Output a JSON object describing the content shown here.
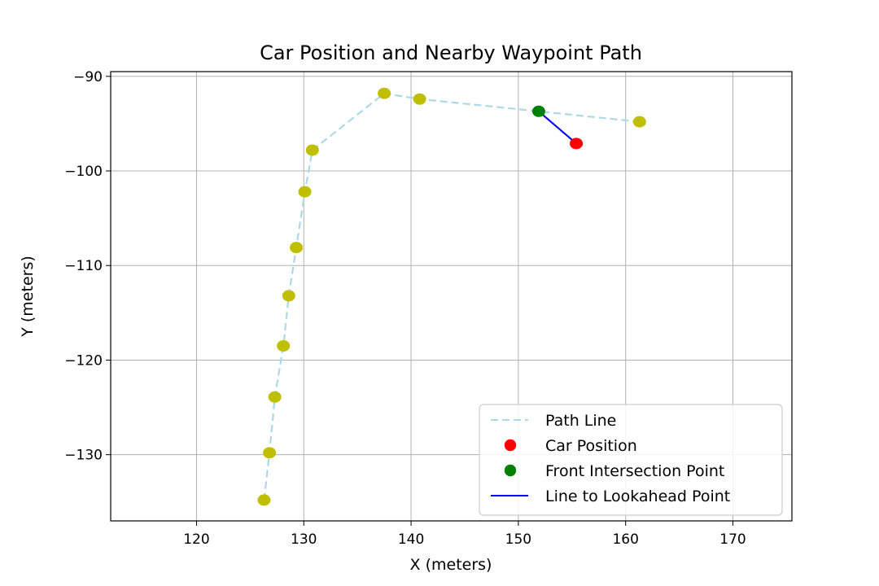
{
  "chart_data": {
    "type": "scatter",
    "title": "Car Position and Nearby Waypoint Path",
    "xlabel": "X (meters)",
    "ylabel": "Y (meters)",
    "xlim": [
      112,
      175.5
    ],
    "ylim": [
      -137,
      -89.5
    ],
    "x_ticks": [
      120,
      130,
      140,
      150,
      160,
      170
    ],
    "y_ticks": [
      -90,
      -100,
      -110,
      -120,
      -130
    ],
    "x_tick_labels": [
      "120",
      "130",
      "140",
      "150",
      "160",
      "170"
    ],
    "y_tick_labels": [
      "−90",
      "−100",
      "−110",
      "−120",
      "−130"
    ],
    "grid": true,
    "legend_position": "lower-right",
    "colors": {
      "path_line": "#add8e6",
      "waypoint": "#bfbf00",
      "car": "#ff0000",
      "intersection": "#008000",
      "lookahead_line": "#0000ff"
    },
    "waypoints": {
      "x": [
        126.3,
        126.8,
        127.3,
        128.1,
        128.6,
        129.3,
        130.1,
        130.8,
        137.5,
        140.8,
        161.3
      ],
      "y": [
        -134.8,
        -129.8,
        -123.9,
        -118.5,
        -113.2,
        -108.1,
        -102.2,
        -97.8,
        -91.8,
        -92.4,
        -94.8
      ]
    },
    "car_position": {
      "x": 155.4,
      "y": -97.1
    },
    "front_intersection_point": {
      "x": 151.9,
      "y": -93.7
    },
    "legend": [
      {
        "key": "path",
        "label": "Path Line"
      },
      {
        "key": "car",
        "label": "Car Position"
      },
      {
        "key": "intersection",
        "label": "Front Intersection Point"
      },
      {
        "key": "lookahead",
        "label": "Line to Lookahead Point"
      }
    ]
  }
}
